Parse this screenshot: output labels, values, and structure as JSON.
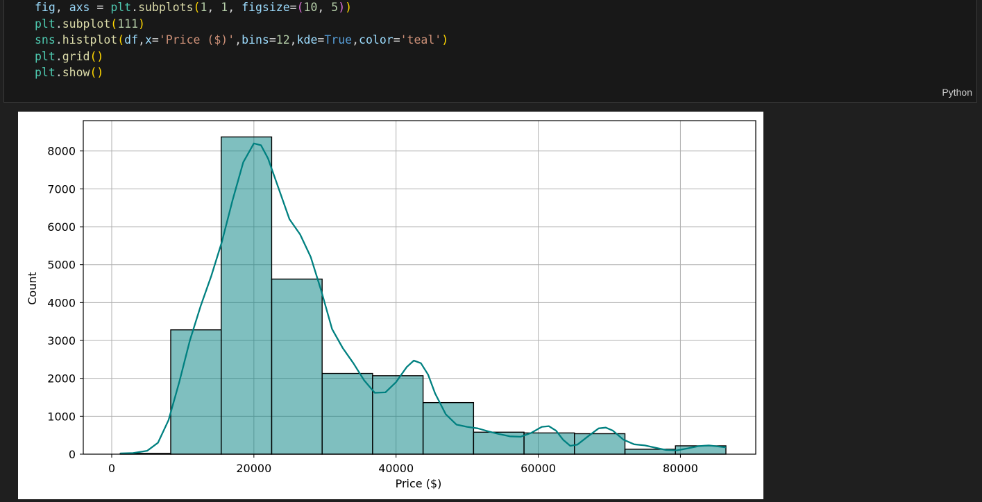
{
  "cell": {
    "language": "Python",
    "code_lines": [
      [
        {
          "t": "fig",
          "c": "var"
        },
        {
          "t": ", ",
          "c": ""
        },
        {
          "t": "axs",
          "c": "var"
        },
        {
          "t": " = ",
          "c": ""
        },
        {
          "t": "plt",
          "c": "mod"
        },
        {
          "t": ".",
          "c": ""
        },
        {
          "t": "subplots",
          "c": "fn"
        },
        {
          "t": "(",
          "c": "p1"
        },
        {
          "t": "1",
          "c": "num"
        },
        {
          "t": ", ",
          "c": ""
        },
        {
          "t": "1",
          "c": "num"
        },
        {
          "t": ", ",
          "c": ""
        },
        {
          "t": "figsize",
          "c": "var"
        },
        {
          "t": "=",
          "c": ""
        },
        {
          "t": "(",
          "c": "p2"
        },
        {
          "t": "10",
          "c": "num"
        },
        {
          "t": ", ",
          "c": ""
        },
        {
          "t": "5",
          "c": "num"
        },
        {
          "t": ")",
          "c": "p2"
        },
        {
          "t": ")",
          "c": "p1"
        }
      ],
      [
        {
          "t": "plt",
          "c": "mod"
        },
        {
          "t": ".",
          "c": ""
        },
        {
          "t": "subplot",
          "c": "fn"
        },
        {
          "t": "(",
          "c": "p1"
        },
        {
          "t": "111",
          "c": "num"
        },
        {
          "t": ")",
          "c": "p1"
        }
      ],
      [
        {
          "t": "sns",
          "c": "mod"
        },
        {
          "t": ".",
          "c": ""
        },
        {
          "t": "histplot",
          "c": "fn"
        },
        {
          "t": "(",
          "c": "p1"
        },
        {
          "t": "df",
          "c": "var"
        },
        {
          "t": ",",
          "c": ""
        },
        {
          "t": "x",
          "c": "var"
        },
        {
          "t": "=",
          "c": ""
        },
        {
          "t": "'Price ($)'",
          "c": "str"
        },
        {
          "t": ",",
          "c": ""
        },
        {
          "t": "bins",
          "c": "var"
        },
        {
          "t": "=",
          "c": ""
        },
        {
          "t": "12",
          "c": "num"
        },
        {
          "t": ",",
          "c": ""
        },
        {
          "t": "kde",
          "c": "var"
        },
        {
          "t": "=",
          "c": ""
        },
        {
          "t": "True",
          "c": "bool"
        },
        {
          "t": ",",
          "c": ""
        },
        {
          "t": "color",
          "c": "var"
        },
        {
          "t": "=",
          "c": ""
        },
        {
          "t": "'teal'",
          "c": "str"
        },
        {
          "t": ")",
          "c": "p1"
        }
      ],
      [
        {
          "t": "plt",
          "c": "mod"
        },
        {
          "t": ".",
          "c": ""
        },
        {
          "t": "grid",
          "c": "fn"
        },
        {
          "t": "()",
          "c": "p1"
        }
      ],
      [
        {
          "t": "plt",
          "c": "mod"
        },
        {
          "t": ".",
          "c": ""
        },
        {
          "t": "show",
          "c": "fn"
        },
        {
          "t": "()",
          "c": "p1"
        }
      ]
    ]
  },
  "chart_data": {
    "type": "bar",
    "xlabel": "Price ($)",
    "ylabel": "Count",
    "xlim": [
      -4000,
      90600
    ],
    "ylim": [
      0,
      8800
    ],
    "xticks": [
      0,
      20000,
      40000,
      60000,
      80000
    ],
    "yticks": [
      0,
      1000,
      2000,
      3000,
      4000,
      5000,
      6000,
      7000,
      8000
    ],
    "grid": true,
    "bar_color": "#008080",
    "bins": [
      {
        "x0": 1200,
        "x1": 8300,
        "count": 20
      },
      {
        "x0": 8300,
        "x1": 15400,
        "count": 3280
      },
      {
        "x0": 15400,
        "x1": 22500,
        "count": 8370
      },
      {
        "x0": 22500,
        "x1": 29600,
        "count": 4620
      },
      {
        "x0": 29600,
        "x1": 36700,
        "count": 2130
      },
      {
        "x0": 36700,
        "x1": 43800,
        "count": 2070
      },
      {
        "x0": 43800,
        "x1": 50900,
        "count": 1360
      },
      {
        "x0": 50900,
        "x1": 58000,
        "count": 580
      },
      {
        "x0": 58000,
        "x1": 65100,
        "count": 560
      },
      {
        "x0": 65100,
        "x1": 72200,
        "count": 540
      },
      {
        "x0": 72200,
        "x1": 79300,
        "count": 130
      },
      {
        "x0": 79300,
        "x1": 86400,
        "count": 220
      }
    ],
    "kde": [
      [
        1200,
        20
      ],
      [
        3000,
        30
      ],
      [
        5000,
        90
      ],
      [
        6500,
        300
      ],
      [
        8000,
        900
      ],
      [
        9500,
        1900
      ],
      [
        11000,
        3000
      ],
      [
        12500,
        3900
      ],
      [
        14000,
        4700
      ],
      [
        15500,
        5600
      ],
      [
        17000,
        6700
      ],
      [
        18500,
        7700
      ],
      [
        20000,
        8200
      ],
      [
        21000,
        8150
      ],
      [
        22000,
        7800
      ],
      [
        23500,
        7000
      ],
      [
        25000,
        6200
      ],
      [
        26500,
        5800
      ],
      [
        28000,
        5200
      ],
      [
        29500,
        4300
      ],
      [
        31000,
        3300
      ],
      [
        32500,
        2800
      ],
      [
        34000,
        2400
      ],
      [
        35500,
        1950
      ],
      [
        37000,
        1620
      ],
      [
        38500,
        1630
      ],
      [
        40000,
        1900
      ],
      [
        41500,
        2300
      ],
      [
        42500,
        2470
      ],
      [
        43500,
        2400
      ],
      [
        44500,
        2100
      ],
      [
        45500,
        1600
      ],
      [
        47000,
        1050
      ],
      [
        48500,
        780
      ],
      [
        50000,
        720
      ],
      [
        51500,
        680
      ],
      [
        53000,
        600
      ],
      [
        54500,
        530
      ],
      [
        56000,
        470
      ],
      [
        57500,
        460
      ],
      [
        59000,
        560
      ],
      [
        60500,
        720
      ],
      [
        61500,
        740
      ],
      [
        62500,
        620
      ],
      [
        63500,
        380
      ],
      [
        64500,
        220
      ],
      [
        65500,
        250
      ],
      [
        67000,
        470
      ],
      [
        68500,
        680
      ],
      [
        69500,
        700
      ],
      [
        70500,
        620
      ],
      [
        72000,
        380
      ],
      [
        73500,
        260
      ],
      [
        75000,
        230
      ],
      [
        76500,
        170
      ],
      [
        78000,
        110
      ],
      [
        79500,
        100
      ],
      [
        81000,
        150
      ],
      [
        82500,
        210
      ],
      [
        84000,
        230
      ],
      [
        85500,
        200
      ],
      [
        86400,
        180
      ]
    ]
  }
}
